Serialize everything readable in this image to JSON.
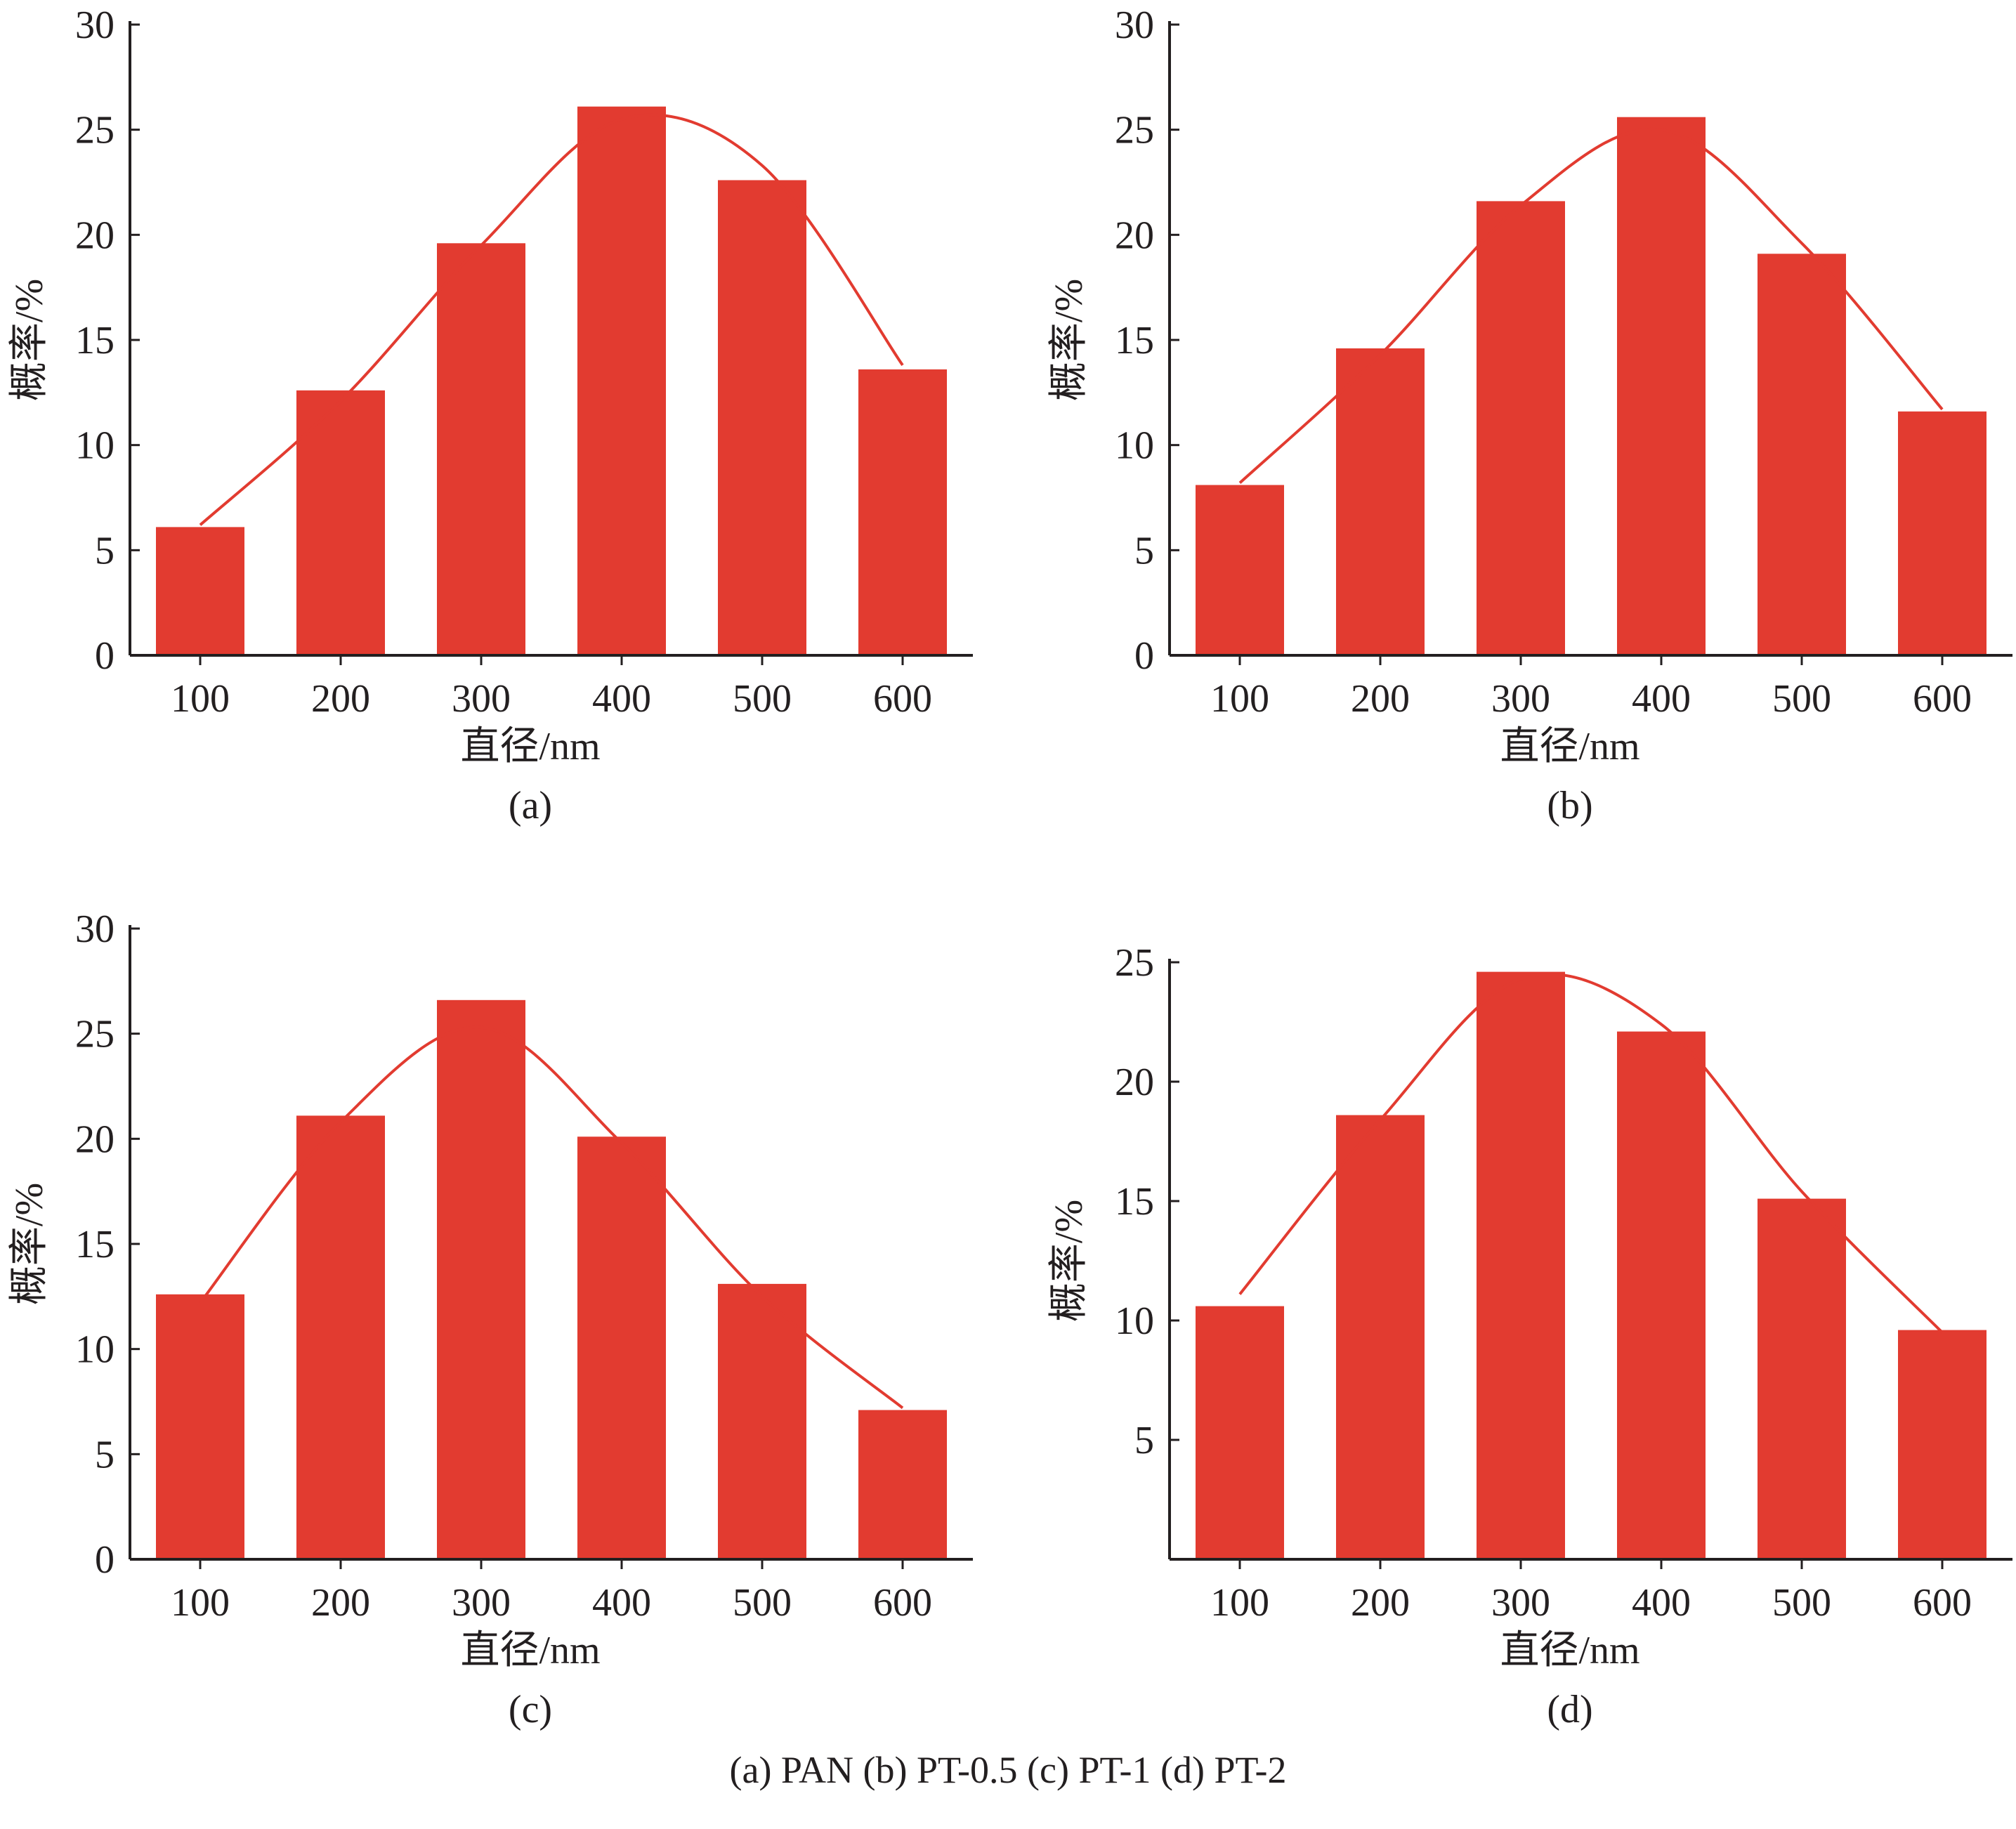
{
  "caption": "(a) PAN    (b) PT-0.5    (c) PT-1    (d) PT-2",
  "colors": {
    "bar": "#e23b30",
    "curve": "#e23b30",
    "axis": "#231f20"
  },
  "chart_data": [
    {
      "type": "bar",
      "panel_label": "(a)",
      "categories": [
        "100",
        "200",
        "300",
        "400",
        "500",
        "600"
      ],
      "values": [
        6.1,
        12.6,
        19.6,
        26.1,
        22.6,
        13.6
      ],
      "fit_curve": [
        6.2,
        12.1,
        19.5,
        25.5,
        23.3,
        13.8
      ],
      "xlabel": "直径/nm",
      "ylabel": "概率/%",
      "ylim": [
        0,
        30
      ],
      "yticks": [
        0,
        5,
        10,
        15,
        20,
        25,
        30
      ]
    },
    {
      "type": "bar",
      "panel_label": "(b)",
      "categories": [
        "100",
        "200",
        "300",
        "400",
        "500",
        "600"
      ],
      "values": [
        8.1,
        14.6,
        21.6,
        25.6,
        19.1,
        11.6
      ],
      "fit_curve": [
        8.2,
        14.3,
        21.4,
        25.0,
        19.6,
        11.7
      ],
      "xlabel": "直径/nm",
      "ylabel": "概率/%",
      "ylim": [
        0,
        30
      ],
      "yticks": [
        0,
        5,
        10,
        15,
        20,
        25,
        30
      ]
    },
    {
      "type": "bar",
      "panel_label": "(c)",
      "categories": [
        "100",
        "200",
        "300",
        "400",
        "500",
        "600"
      ],
      "values": [
        12.6,
        21.1,
        26.6,
        20.1,
        13.1,
        7.1
      ],
      "fit_curve": [
        12.2,
        20.8,
        25.3,
        19.8,
        12.5,
        7.2
      ],
      "xlabel": "直径/nm",
      "ylabel": "概率/%",
      "ylim": [
        0,
        30
      ],
      "yticks": [
        0,
        5,
        10,
        15,
        20,
        25,
        30
      ]
    },
    {
      "type": "bar",
      "panel_label": "(d)",
      "categories": [
        "100",
        "200",
        "300",
        "400",
        "500",
        "600"
      ],
      "values": [
        10.6,
        18.6,
        24.6,
        22.1,
        15.1,
        9.6
      ],
      "fit_curve": [
        11.1,
        18.4,
        24.3,
        22.4,
        15.4,
        9.5
      ],
      "xlabel": "直径/nm",
      "ylabel": "概率/%",
      "ylim": [
        0,
        25
      ],
      "yticks": [
        5,
        10,
        15,
        20,
        25
      ]
    }
  ]
}
